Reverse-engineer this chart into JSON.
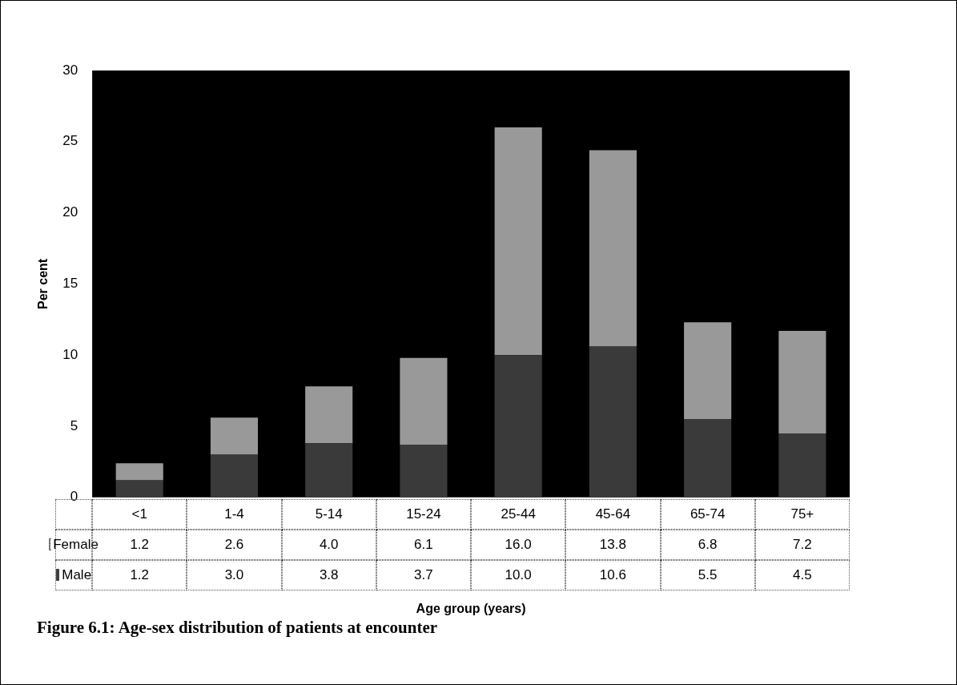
{
  "chart_data": {
    "type": "bar",
    "title": "Figure 6.1: Age-sex distribution of patients at encounter",
    "ylabel": "Per cent",
    "annotations": [
      "Age group (years)"
    ],
    "categories": [
      "<1",
      "1-4",
      "5-14",
      "15-24",
      "25-44",
      "45-64",
      "65-74",
      "75+"
    ],
    "stacked": true,
    "series": [
      {
        "name": "Male",
        "color": "#3a3a3a",
        "values": [
          1.2,
          3.0,
          3.8,
          3.7,
          10.0,
          10.6,
          5.5,
          4.5
        ],
        "value_labels": [
          "1.2",
          "3.0",
          "3.8",
          "3.7",
          "10.0",
          "10.6",
          "5.5",
          "4.5"
        ]
      },
      {
        "name": "Female",
        "color": "#999999",
        "values": [
          1.2,
          2.6,
          4.0,
          6.1,
          16.0,
          13.8,
          6.8,
          7.2
        ],
        "value_labels": [
          "1.2",
          "2.6",
          "4.0",
          "6.1",
          "16.0",
          "13.8",
          "6.8",
          "7.2"
        ]
      }
    ],
    "ylim": [
      0,
      30
    ],
    "yticks": [
      0,
      5,
      10,
      15,
      20,
      25,
      30
    ],
    "grid": false,
    "legend": "bottom"
  }
}
